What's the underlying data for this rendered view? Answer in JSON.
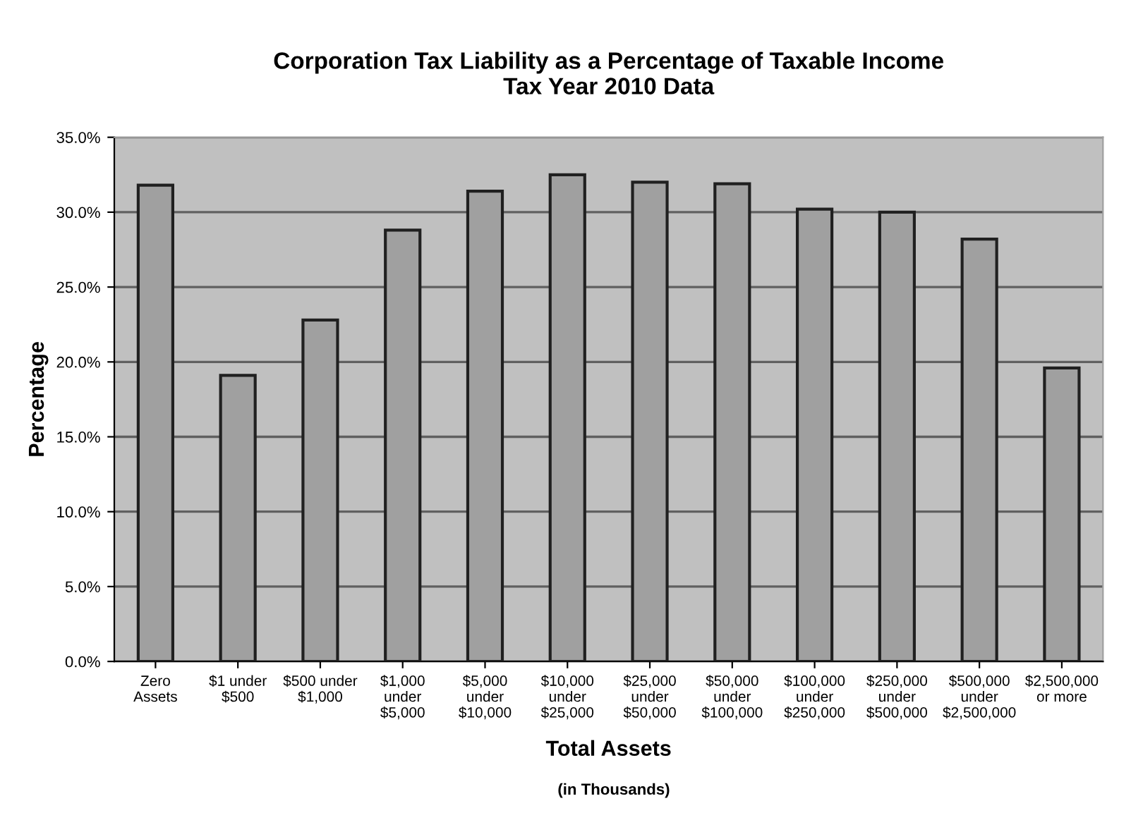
{
  "chart_data": {
    "type": "bar",
    "title": "Corporation Tax Liability as a Percentage of Taxable Income\nTax Year 2010 Data",
    "categories": [
      "Zero\nAssets",
      "$1 under\n$500",
      "$500 under\n$1,000",
      "$1,000\nunder\n$5,000",
      "$5,000\nunder\n$10,000",
      "$10,000\nunder\n$25,000",
      "$25,000\nunder\n$50,000",
      "$50,000\nunder\n$100,000",
      "$100,000\nunder\n$250,000",
      "$250,000\nunder\n$500,000",
      "$500,000\nunder\n$2,500,000",
      "$2,500,000\nor more"
    ],
    "values": [
      31.8,
      19.1,
      22.8,
      28.8,
      31.4,
      32.5,
      32.0,
      31.9,
      30.2,
      30.0,
      28.2,
      19.6
    ],
    "color": "#a0a0a0",
    "xlabel": "Total Assets",
    "ylabel": "Percentage",
    "annotations": [
      "(in Thousands)"
    ],
    "ylim": [
      0,
      35
    ],
    "yticks": [
      {
        "value": 0,
        "label": "0.0%"
      },
      {
        "value": 5,
        "label": "5.0%"
      },
      {
        "value": 10,
        "label": "10.0%"
      },
      {
        "value": 15,
        "label": "15.0%"
      },
      {
        "value": 20,
        "label": "20.0%"
      },
      {
        "value": 25,
        "label": "25.0%"
      },
      {
        "value": 30,
        "label": "30.0%"
      },
      {
        "value": 35,
        "label": "35.0%"
      }
    ],
    "grid": "y"
  }
}
